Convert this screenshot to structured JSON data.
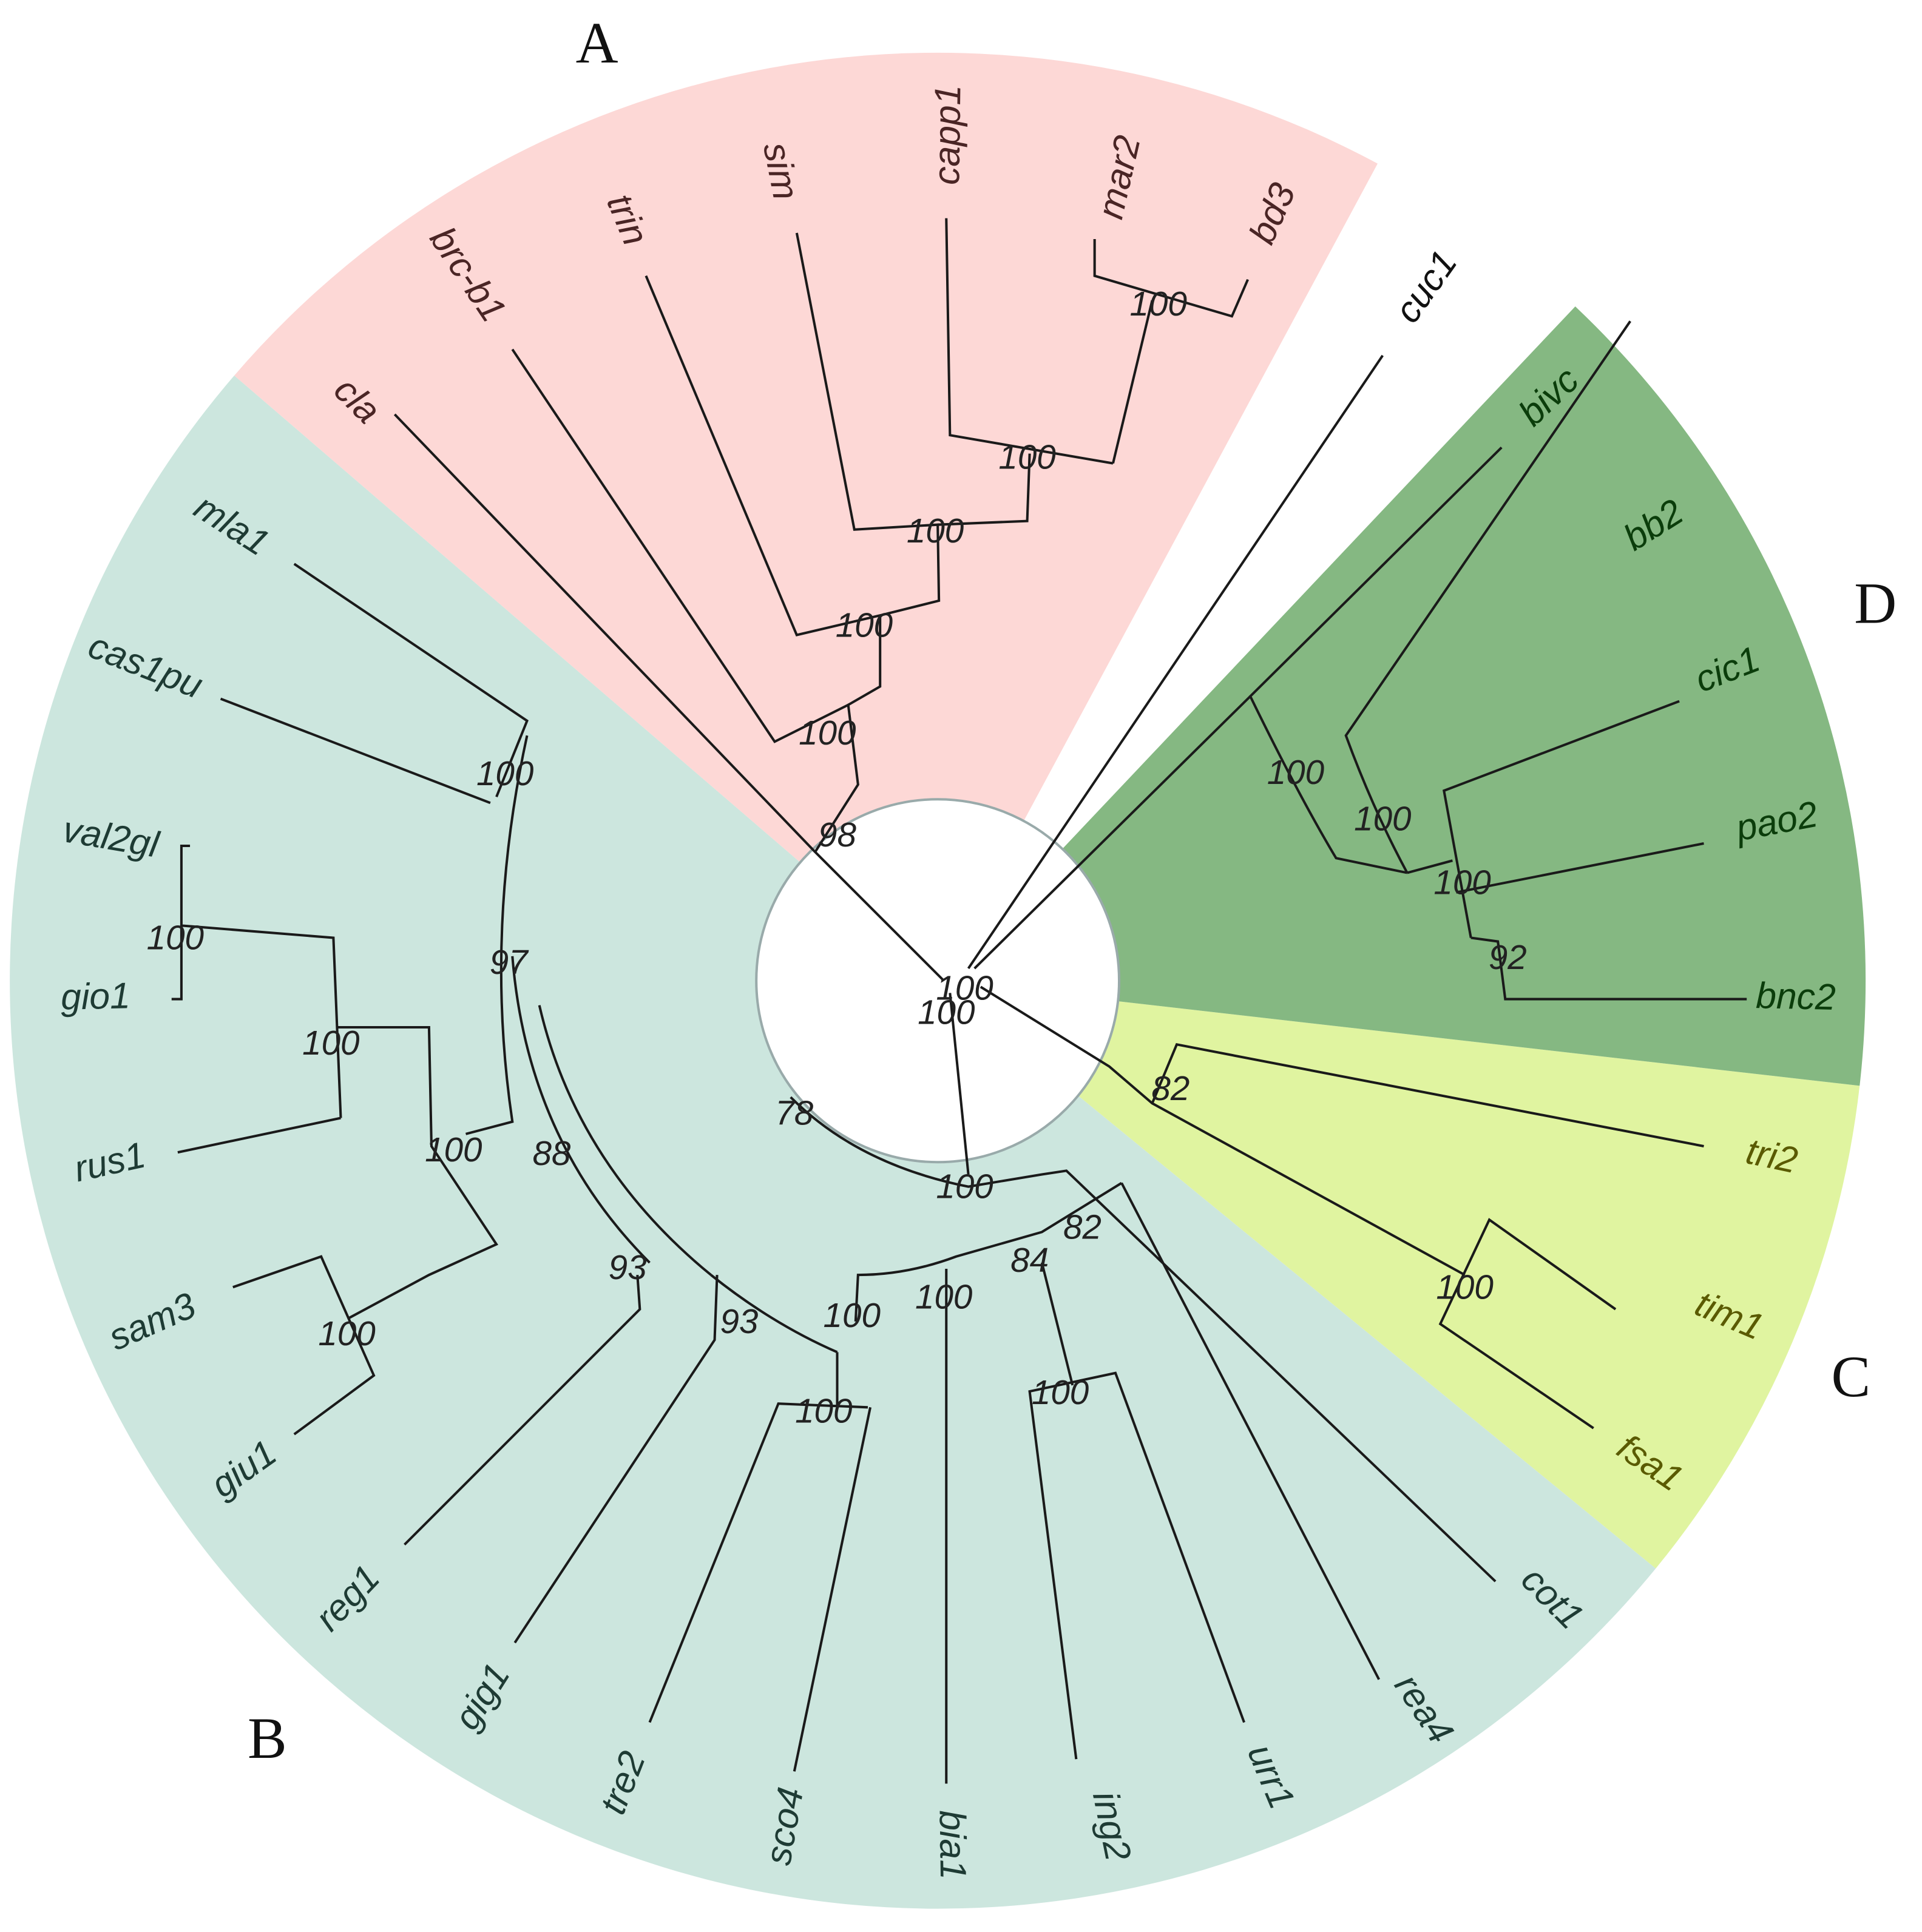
{
  "clades": [
    "A",
    "B",
    "C",
    "D"
  ],
  "leaves": [
    "cla",
    "brc-b1",
    "trin",
    "sim",
    "capp1",
    "mar2",
    "bd3",
    "cuc1",
    "bivc",
    "bb2",
    "cic1",
    "pao2",
    "bnc2",
    "tri2",
    "tim1",
    "fsa1",
    "cot1",
    "rea4",
    "urr1",
    "ing2",
    "bia1",
    "sco4",
    "tre2",
    "gig1",
    "reg1",
    "giu1",
    "sam3",
    "rus1",
    "gio1",
    "val2gl",
    "cas1pu",
    "mla1"
  ],
  "support": [
    100,
    100,
    100,
    100,
    100,
    98,
    100,
    100,
    100,
    100,
    100,
    92,
    82,
    100,
    100,
    97,
    100,
    100,
    100,
    88,
    100,
    93,
    93,
    100,
    100,
    100,
    78,
    100,
    82,
    84,
    100
  ]
}
